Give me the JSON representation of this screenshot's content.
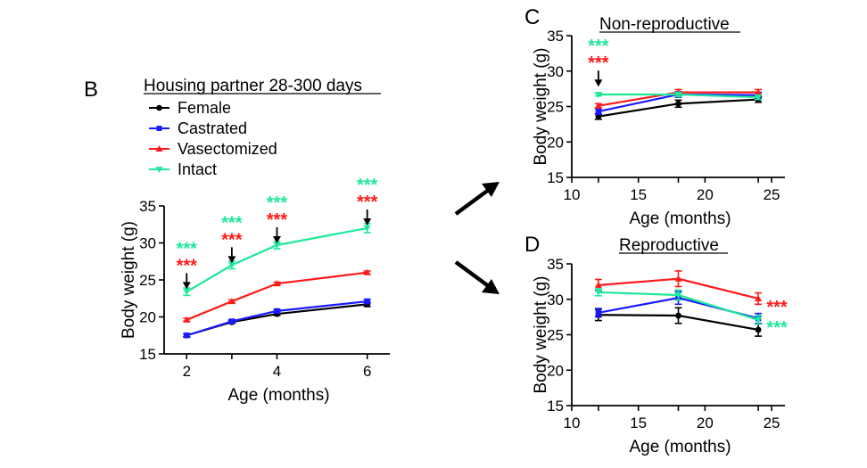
{
  "panels": {
    "B": {
      "label": "B",
      "subtitle": "Housing partner 28-300 days"
    },
    "C": {
      "label": "C",
      "title": "Non-reproductive"
    },
    "D": {
      "label": "D",
      "title": "Reproductive"
    }
  },
  "legend": [
    {
      "name": "Female",
      "color": "#000000",
      "marker": "circle"
    },
    {
      "name": "Castrated",
      "color": "#1a1aff",
      "marker": "square"
    },
    {
      "name": "Vasectomized",
      "color": "#ff1a1a",
      "marker": "triangle"
    },
    {
      "name": "Intact",
      "color": "#1ee89a",
      "marker": "triangle-down"
    }
  ],
  "significance": {
    "text": "***",
    "colors": {
      "intact": "#1ee89a",
      "vasectomized": "#ff1a1a"
    }
  },
  "chart_data": [
    {
      "id": "B",
      "type": "line",
      "xlabel": "Age (months)",
      "ylabel": "Body weight (g)",
      "xlim": [
        1.5,
        6.5
      ],
      "ylim": [
        15,
        35
      ],
      "xticks": [
        2,
        4,
        6
      ],
      "yticks": [
        15,
        20,
        25,
        30,
        35
      ],
      "x": [
        2,
        3,
        4,
        6
      ],
      "series": [
        {
          "name": "Female",
          "values": [
            17.5,
            19.3,
            20.4,
            21.7
          ],
          "err": [
            0.2,
            0.2,
            0.2,
            0.3
          ]
        },
        {
          "name": "Castrated",
          "values": [
            17.5,
            19.4,
            20.8,
            22.1
          ],
          "err": [
            0.2,
            0.2,
            0.2,
            0.3
          ]
        },
        {
          "name": "Vasectomized",
          "values": [
            19.6,
            22.1,
            24.5,
            26.0
          ],
          "err": [
            0.2,
            0.2,
            0.2,
            0.2
          ]
        },
        {
          "name": "Intact",
          "values": [
            23.4,
            27.0,
            29.7,
            32.0
          ],
          "err": [
            0.5,
            0.5,
            0.5,
            0.6
          ]
        }
      ],
      "annotations": [
        {
          "x": 2,
          "y": 27.0,
          "arrow": true
        },
        {
          "x": 3,
          "y": 30.5,
          "arrow": true
        },
        {
          "x": 4,
          "y": 33.2,
          "arrow": true
        },
        {
          "x": 6,
          "y": 35.6,
          "arrow": true
        }
      ]
    },
    {
      "id": "C",
      "type": "line",
      "xlabel": "Age (months)",
      "ylabel": "Body weight (g)",
      "xlim": [
        10,
        26
      ],
      "ylim": [
        15,
        35
      ],
      "xticks": [
        10,
        15,
        20,
        25
      ],
      "yticks": [
        15,
        20,
        25,
        30,
        35
      ],
      "x": [
        12,
        18,
        24
      ],
      "series": [
        {
          "name": "Female",
          "values": [
            23.6,
            25.4,
            26.0
          ],
          "err": [
            0.4,
            0.5,
            0.4
          ]
        },
        {
          "name": "Castrated",
          "values": [
            24.3,
            26.7,
            26.6
          ],
          "err": [
            0.4,
            0.4,
            0.4
          ]
        },
        {
          "name": "Vasectomized",
          "values": [
            25.1,
            27.0,
            27.0
          ],
          "err": [
            0.3,
            0.4,
            0.4
          ]
        },
        {
          "name": "Intact",
          "values": [
            26.7,
            26.7,
            26.3
          ],
          "err": [
            0.2,
            0.3,
            0.3
          ]
        }
      ],
      "annotations": [
        {
          "x": 12,
          "y": 31.2,
          "arrow": true
        }
      ]
    },
    {
      "id": "D",
      "type": "line",
      "xlabel": "Age (months)",
      "ylabel": "Body weight (g)",
      "xlim": [
        10,
        26
      ],
      "ylim": [
        15,
        35
      ],
      "xticks": [
        10,
        15,
        20,
        25
      ],
      "yticks": [
        15,
        20,
        25,
        30,
        35
      ],
      "x": [
        12,
        18,
        24
      ],
      "series": [
        {
          "name": "Female",
          "values": [
            27.8,
            27.7,
            25.7
          ],
          "err": [
            0.8,
            1.1,
            0.9
          ]
        },
        {
          "name": "Castrated",
          "values": [
            28.1,
            30.2,
            27.3
          ],
          "err": [
            0.6,
            0.9,
            0.7
          ]
        },
        {
          "name": "Vasectomized",
          "values": [
            32.0,
            32.9,
            30.1
          ],
          "err": [
            0.8,
            1.1,
            0.8
          ]
        },
        {
          "name": "Intact",
          "values": [
            31.0,
            30.6,
            27.1
          ],
          "err": [
            0.5,
            0.7,
            0.6
          ]
        }
      ],
      "annotations": [
        {
          "x": 25.4,
          "y": 29.2,
          "arrow": false,
          "only": "vasectomized"
        },
        {
          "x": 25.4,
          "y": 26.3,
          "arrow": false,
          "only": "intact"
        }
      ]
    }
  ]
}
